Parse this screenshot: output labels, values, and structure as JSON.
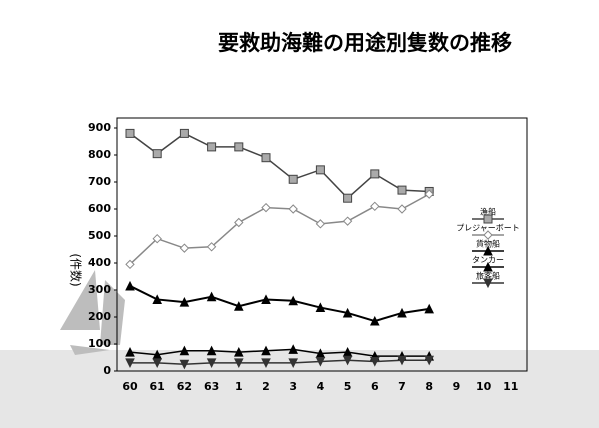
{
  "chart_data": {
    "type": "line",
    "title": "要救助海難の用途別隻数の推移",
    "y_label": "(件数)",
    "categories": [
      "60",
      "61",
      "62",
      "63",
      "1",
      "2",
      "3",
      "4",
      "5",
      "6",
      "7",
      "8",
      "9",
      "10",
      "11"
    ],
    "ylim": [
      0,
      900
    ],
    "yticks": [
      0,
      100,
      200,
      300,
      400,
      500,
      600,
      700,
      800,
      900
    ],
    "grid": false,
    "legend": "right",
    "series": [
      {
        "name": "漁船",
        "color": "#444444",
        "marker": "square",
        "values": [
          880,
          805,
          880,
          830,
          830,
          790,
          710,
          745,
          640,
          730,
          670,
          665,
          null,
          null,
          null
        ]
      },
      {
        "name": "プレジャーボート",
        "color": "#888888",
        "marker": "diamond",
        "values": [
          395,
          490,
          455,
          460,
          550,
          605,
          600,
          545,
          555,
          610,
          600,
          655,
          null,
          null,
          null
        ]
      },
      {
        "name": "貨物船",
        "color": "#000000",
        "marker": "triangle",
        "values": [
          315,
          265,
          255,
          275,
          240,
          265,
          260,
          235,
          215,
          185,
          215,
          230,
          null,
          null,
          null
        ]
      },
      {
        "name": "タンカー",
        "color": "#000000",
        "marker": "triangle",
        "values": [
          70,
          60,
          75,
          75,
          70,
          75,
          80,
          65,
          70,
          55,
          55,
          55,
          null,
          null,
          null
        ]
      },
      {
        "name": "旅客船",
        "color": "#333333",
        "marker": "triangle-down",
        "values": [
          30,
          30,
          25,
          30,
          30,
          30,
          30,
          35,
          40,
          35,
          40,
          40,
          null,
          null,
          null
        ]
      }
    ]
  }
}
